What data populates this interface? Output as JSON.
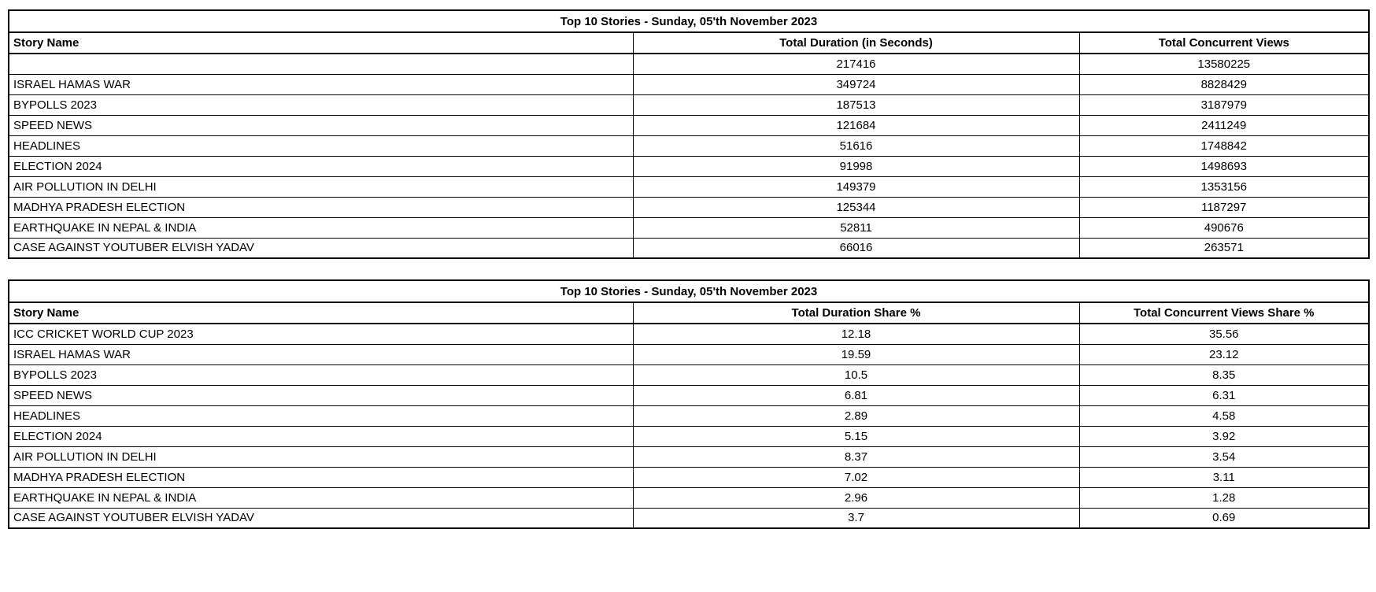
{
  "chart_data": [
    {
      "type": "table",
      "title": "Top 10 Stories - Sunday, 05'th November 2023",
      "columns": [
        "Story Name",
        "Total Duration (in Seconds)",
        "Total Concurrent Views"
      ],
      "rows": [
        [
          "",
          217416,
          13580225
        ],
        [
          "ISRAEL HAMAS WAR",
          349724,
          8828429
        ],
        [
          "BYPOLLS 2023",
          187513,
          3187979
        ],
        [
          "SPEED NEWS",
          121684,
          2411249
        ],
        [
          "HEADLINES",
          51616,
          1748842
        ],
        [
          "ELECTION 2024",
          91998,
          1498693
        ],
        [
          "AIR POLLUTION IN DELHI",
          149379,
          1353156
        ],
        [
          "MADHYA PRADESH ELECTION",
          125344,
          1187297
        ],
        [
          "EARTHQUAKE IN NEPAL & INDIA",
          52811,
          490676
        ],
        [
          "CASE AGAINST YOUTUBER ELVISH YADAV",
          66016,
          263571
        ]
      ]
    },
    {
      "type": "table",
      "title": "Top 10 Stories - Sunday, 05'th November 2023",
      "columns": [
        "Story Name",
        "Total Duration Share %",
        "Total Concurrent Views Share %"
      ],
      "rows": [
        [
          "ICC CRICKET WORLD CUP 2023",
          12.18,
          35.56
        ],
        [
          "ISRAEL HAMAS WAR",
          19.59,
          23.12
        ],
        [
          "BYPOLLS 2023",
          10.5,
          8.35
        ],
        [
          "SPEED NEWS",
          6.81,
          6.31
        ],
        [
          "HEADLINES",
          2.89,
          4.58
        ],
        [
          "ELECTION 2024",
          5.15,
          3.92
        ],
        [
          "AIR POLLUTION IN DELHI",
          8.37,
          3.54
        ],
        [
          "MADHYA PRADESH ELECTION",
          7.02,
          3.11
        ],
        [
          "EARTHQUAKE IN NEPAL & INDIA",
          2.96,
          1.28
        ],
        [
          "CASE AGAINST YOUTUBER ELVISH YADAV",
          3.7,
          0.69
        ]
      ]
    }
  ]
}
